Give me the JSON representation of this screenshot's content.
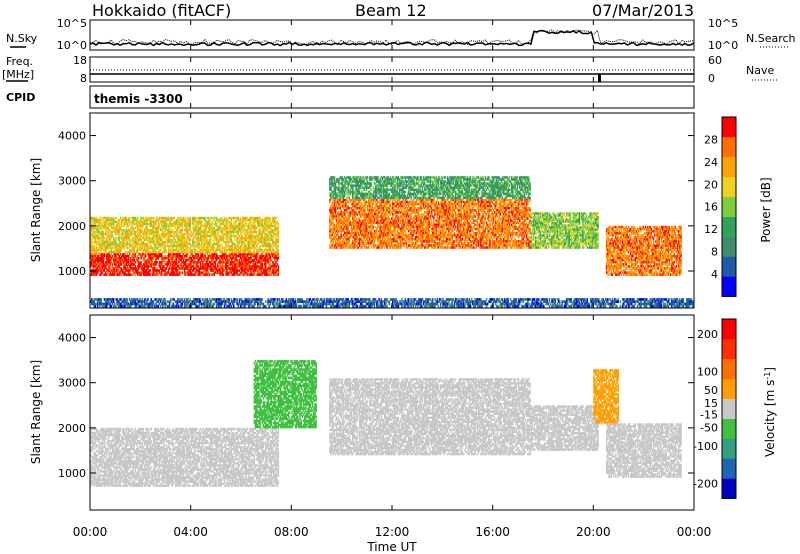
{
  "header": {
    "station": "Hokkaido (fitACF)",
    "beam": "Beam 12",
    "date": "07/Mar/2013"
  },
  "panel_labels": {
    "nsky": "N.Sky",
    "nsearch": "N.Search",
    "freq_line1": "Freq.",
    "freq_line2": "[MHz]",
    "nave": "Nave",
    "cpid": "CPID",
    "cpid_value": "themis -3300"
  },
  "noise_ticks": {
    "left": [
      "10^5",
      "10^0"
    ],
    "right": [
      "10^5",
      "10^0"
    ]
  },
  "freq_ticks": {
    "left": [
      "18",
      "8"
    ],
    "right": [
      "60",
      "0"
    ]
  },
  "time_axis": {
    "label": "Time UT",
    "ticks": [
      "00:00",
      "04:00",
      "08:00",
      "12:00",
      "16:00",
      "20:00",
      "00:00"
    ]
  },
  "chart_data": [
    {
      "type": "heatmap",
      "title": "Power",
      "xlabel": "Time UT",
      "ylabel": "Slant Range [km]",
      "xlim": [
        0,
        24
      ],
      "ylim": [
        180,
        4500
      ],
      "yticks": [
        "1000",
        "2000",
        "3000",
        "4000"
      ],
      "colorbar": {
        "label": "Power [dB]",
        "range": [
          0,
          32
        ],
        "ticks": [
          "4",
          "8",
          "12",
          "16",
          "20",
          "24",
          "28"
        ],
        "colors": [
          "#0000ff",
          "#1e5aa8",
          "#3d8c6e",
          "#2fa35a",
          "#7ccf3a",
          "#f0d020",
          "#ffa500",
          "#ff7000",
          "#ff0000"
        ]
      },
      "echo_bands": [
        {
          "range_km": [
            900,
            1400
          ],
          "from_h": 0,
          "to_h": 7.5,
          "power_db": 30
        },
        {
          "range_km": [
            1400,
            2200
          ],
          "from_h": 0,
          "to_h": 7.5,
          "power_db": 20
        },
        {
          "range_km": [
            1500,
            2600
          ],
          "from_h": 9.5,
          "to_h": 17.5,
          "power_db": 26
        },
        {
          "range_km": [
            2600,
            3100
          ],
          "from_h": 9.5,
          "to_h": 17.5,
          "power_db": 12
        },
        {
          "range_km": [
            1500,
            2300
          ],
          "from_h": 17.5,
          "to_h": 20.2,
          "power_db": 16
        },
        {
          "range_km": [
            900,
            2000
          ],
          "from_h": 20.5,
          "to_h": 23.5,
          "power_db": 26
        },
        {
          "range_km": [
            200,
            400
          ],
          "from_h": 0,
          "to_h": 24,
          "power_db": 6
        }
      ]
    },
    {
      "type": "heatmap",
      "title": "Velocity",
      "xlabel": "Time UT",
      "ylabel": "Slant Range [km]",
      "xlim": [
        0,
        24
      ],
      "ylim": [
        180,
        4500
      ],
      "yticks": [
        "1000",
        "2000",
        "3000",
        "4000"
      ],
      "colorbar": {
        "label": "Velocity [m s-1]",
        "unit_prefix": "Velocity [m s",
        "unit_exp": "-1",
        "unit_suffix": "]",
        "range": [
          -240,
          240
        ],
        "ticks": [
          "200",
          "100",
          "50",
          "15",
          "-15",
          "-50",
          "-100",
          "-200"
        ],
        "colors": [
          "#0000c0",
          "#1e64b4",
          "#2fa080",
          "#40c040",
          "#c8c8c8",
          "#ffa000",
          "#ff7000",
          "#ff3000",
          "#ff0000"
        ]
      },
      "echo_bands": [
        {
          "range_km": [
            700,
            2000
          ],
          "from_h": 0,
          "to_h": 7.5,
          "velocity": 0
        },
        {
          "range_km": [
            1400,
            3100
          ],
          "from_h": 9.5,
          "to_h": 17.5,
          "velocity": 0
        },
        {
          "range_km": [
            1500,
            2500
          ],
          "from_h": 17.5,
          "to_h": 20.2,
          "velocity": 0
        },
        {
          "range_km": [
            2100,
            3300
          ],
          "from_h": 20.0,
          "to_h": 21.0,
          "velocity": 60
        },
        {
          "range_km": [
            900,
            2100
          ],
          "from_h": 20.5,
          "to_h": 23.5,
          "velocity": 0
        },
        {
          "range_km": [
            2000,
            3500
          ],
          "from_h": 6.5,
          "to_h": 9.0,
          "velocity": -40
        }
      ]
    }
  ]
}
